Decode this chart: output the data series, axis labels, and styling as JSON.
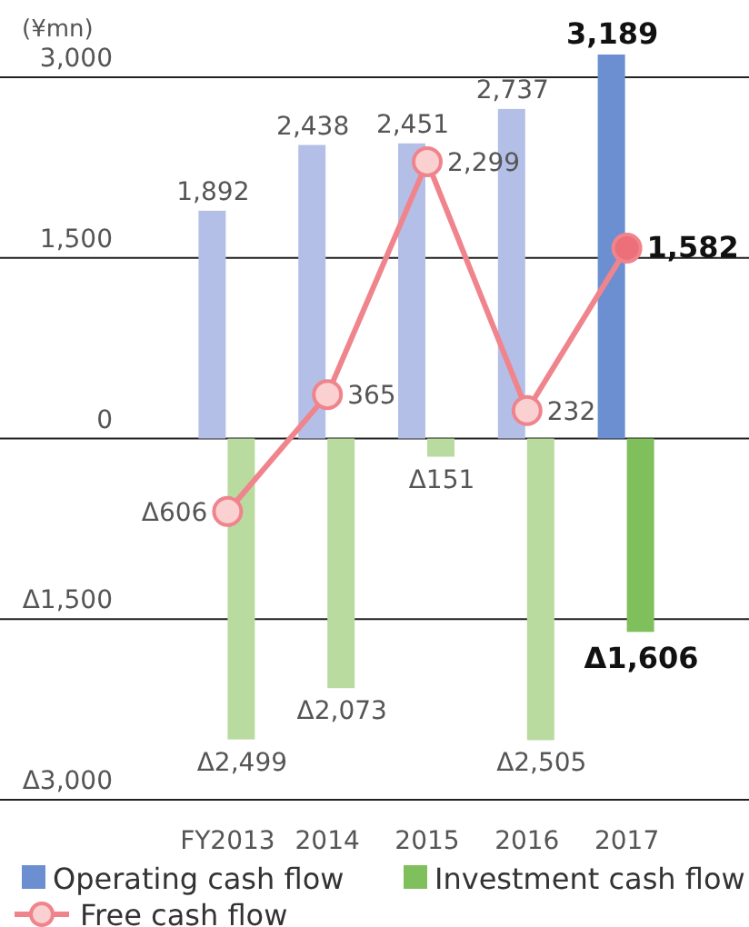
{
  "chart_data": {
    "type": "bar",
    "ylabel": "(¥mn)",
    "categories": [
      "FY2013",
      "2014",
      "2015",
      "2016",
      "2017"
    ],
    "ylim": [
      -3000,
      3189
    ],
    "yticks": [
      {
        "value": 3000,
        "label": "3,000"
      },
      {
        "value": 1500,
        "label": "1,500"
      },
      0,
      {
        "value": -1500,
        "label": "Δ1,500"
      },
      {
        "value": -3000,
        "label": "Δ3,000"
      }
    ],
    "grid": "y",
    "legend": "bottom",
    "marker": "circle",
    "series": [
      {
        "name": "Operating cash flow",
        "color": "#6b8fd0",
        "colors": [
          "#b4bfe8",
          "#b4bfe8",
          "#b4bfe8",
          "#b4bfe8",
          "#6b8fd0"
        ],
        "values": [
          1892,
          2438,
          2451,
          2737,
          3189
        ],
        "value_labels": [
          "1,892",
          "2,438",
          "2,451",
          "2,737",
          "3,189"
        ]
      },
      {
        "name": "Investment cash flow",
        "color": "#7fbf5c",
        "colors": [
          "#b9dba0",
          "#b9dba0",
          "#b9dba0",
          "#b9dba0",
          "#7fbf5c"
        ],
        "values": [
          -2499,
          -2073,
          -151,
          -2505,
          -1606
        ],
        "value_labels": [
          "Δ2,499",
          "Δ2,073",
          "Δ151",
          "Δ2,505",
          "Δ1,606"
        ]
      },
      {
        "name": "Free cash flow",
        "type": "line",
        "color": "#f0848c",
        "colors": [
          "#fad0d0",
          "#fad0d0",
          "#fad0d0",
          "#fad0d0",
          "#ec6f7a"
        ],
        "values": [
          -606,
          365,
          2299,
          232,
          1582
        ],
        "value_labels": [
          "Δ606",
          "365",
          "2,299",
          "232",
          "1,582"
        ]
      }
    ]
  }
}
